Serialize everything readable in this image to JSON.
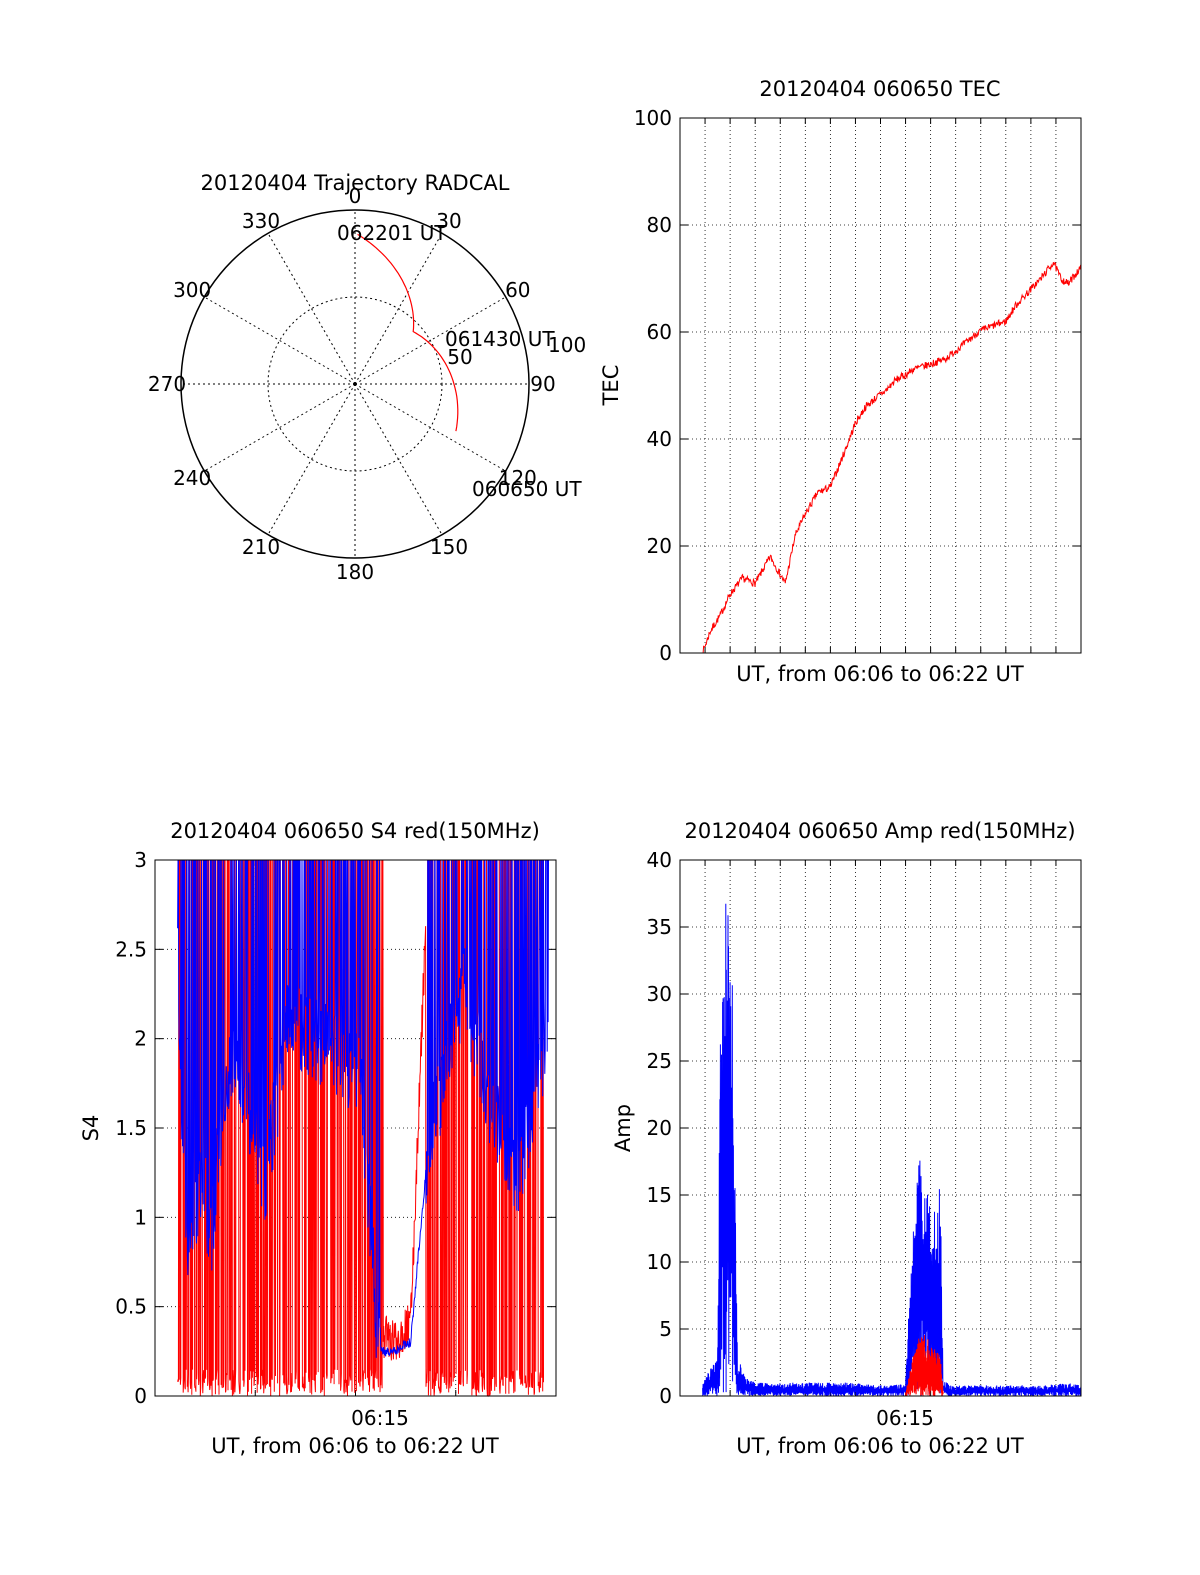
{
  "colors": {
    "red": "#ff0000",
    "blue": "#0000ff",
    "axis": "#000000"
  },
  "chart_data": [
    {
      "type": "polar",
      "title": "20120404 Trajectory RADCAL",
      "angle_labels": [
        "0",
        "30",
        "60",
        "90",
        "120",
        "150",
        "180",
        "210",
        "240",
        "270",
        "300",
        "330"
      ],
      "radial_labels": [
        "50",
        "100"
      ],
      "trajectory": {
        "color": "red",
        "points": [
          {
            "time": "062201 UT",
            "azimuth": 1,
            "zenith": 86
          },
          {
            "time": "061430 UT",
            "azimuth": 48,
            "zenith": 45
          },
          {
            "time": "060650 UT",
            "azimuth": 115,
            "zenith": 64
          }
        ]
      },
      "annotations": [
        "062201 UT",
        "061430 UT",
        "060650 UT"
      ]
    },
    {
      "type": "line",
      "title": "20120404 060650 TEC",
      "xlabel": "UT, from 06:06 to 06:22 UT",
      "ylabel": "TEC",
      "xlim_minutes": [
        6.0,
        22.0
      ],
      "ylim": [
        0,
        100
      ],
      "yticks": [
        "0",
        "20",
        "40",
        "60",
        "80",
        "100"
      ],
      "grid": true,
      "series": [
        {
          "color": "red",
          "x_minutes": [
            6.9,
            7.2,
            7.6,
            8.0,
            8.5,
            9.0,
            9.6,
            10.2,
            10.6,
            11.0,
            11.5,
            12.0,
            12.6,
            13.0,
            13.4,
            13.9,
            14.2,
            14.6,
            15.0,
            15.3,
            16.0,
            16.6,
            17.4,
            17.9,
            18.4,
            19.0,
            19.4,
            19.8,
            20.4,
            20.9,
            21.2,
            21.5,
            21.8,
            22.0
          ],
          "values": [
            0,
            4,
            7,
            11,
            14,
            13,
            18,
            13,
            22,
            26,
            30,
            31,
            38,
            43,
            46,
            48,
            49,
            51,
            52,
            53,
            54,
            55,
            58,
            60,
            61,
            62,
            65,
            67,
            70,
            73,
            70,
            69,
            71,
            72
          ]
        }
      ]
    },
    {
      "type": "line",
      "title": "20120404 060650 S4 red(150MHz)",
      "xlabel": "UT, from 06:06 to 06:22 UT",
      "ylabel": "S4",
      "xlim_minutes": [
        6.0,
        22.0
      ],
      "xticks": [
        "06:15"
      ],
      "ylim": [
        0,
        3
      ],
      "yticks": [
        "0",
        "0.5",
        "1",
        "1.5",
        "2",
        "2.5",
        "3"
      ],
      "grid": true,
      "series": [
        {
          "color": "blue",
          "x_minutes": [
            6.9,
            7.1,
            7.3,
            7.6,
            7.9,
            8.2,
            8.6,
            9.0,
            9.6,
            10.4,
            11.3,
            12.3,
            13.3,
            14.2,
            14.9,
            15.0,
            15.5,
            16.2,
            16.9,
            18.3,
            19.2,
            20.5,
            21.7
          ],
          "values": [
            2.5,
            1.4,
            0.9,
            1.0,
            1.3,
            0.8,
            1.5,
            1.9,
            1.7,
            1.2,
            2.1,
            2.0,
            1.9,
            1.8,
            0.3,
            0.25,
            0.25,
            0.3,
            1.4,
            2.3,
            1.7,
            1.2,
            2.1
          ]
        },
        {
          "color": "red",
          "x_minutes": [
            6.9,
            7.2,
            7.6,
            8.1,
            8.7,
            9.5,
            10.5,
            11.5,
            12.5,
            13.5,
            14.4,
            15.0,
            15.5,
            16.2,
            16.9,
            17.5,
            18.5,
            19.5,
            20.5,
            21.5
          ],
          "values": [
            3.0,
            0.1,
            3.0,
            0.1,
            3.0,
            0.05,
            3.0,
            0.1,
            3.0,
            0.1,
            3.0,
            0.35,
            0.3,
            0.4,
            3.0,
            0.1,
            3.0,
            0.1,
            3.0,
            0.1
          ]
        }
      ]
    },
    {
      "type": "line",
      "title": "20120404 060650 Amp red(150MHz)",
      "xlabel": "UT, from 06:06 to 06:22 UT",
      "ylabel": "Amp",
      "xlim_minutes": [
        6.0,
        22.0
      ],
      "xticks": [
        "06:15"
      ],
      "ylim": [
        0,
        40
      ],
      "yticks": [
        "0",
        "5",
        "10",
        "15",
        "20",
        "25",
        "30",
        "35",
        "40"
      ],
      "grid": true,
      "series": [
        {
          "color": "blue",
          "x_minutes": [
            6.9,
            7.2,
            7.5,
            7.6,
            7.8,
            8.1,
            8.3,
            8.4,
            8.6,
            9.0,
            10.0,
            11.0,
            12.0,
            13.0,
            14.0,
            14.5,
            15.0,
            15.3,
            15.6,
            16.0,
            16.4,
            16.5,
            16.8,
            17.5,
            18.5,
            19.5,
            20.5,
            21.5,
            22.0
          ],
          "values": [
            1,
            2,
            3,
            30,
            37,
            35,
            2,
            2.5,
            1.5,
            1,
            1,
            1,
            1,
            1,
            0.8,
            0.8,
            1,
            15,
            18,
            14,
            16,
            1.2,
            0.8,
            0.8,
            0.8,
            0.8,
            0.8,
            1,
            1
          ]
        },
        {
          "color": "red",
          "x_minutes": [
            15.0,
            15.3,
            15.6,
            16.0,
            16.4,
            16.5
          ],
          "values": [
            0.3,
            3,
            5,
            4,
            3,
            0.3
          ]
        }
      ]
    }
  ]
}
